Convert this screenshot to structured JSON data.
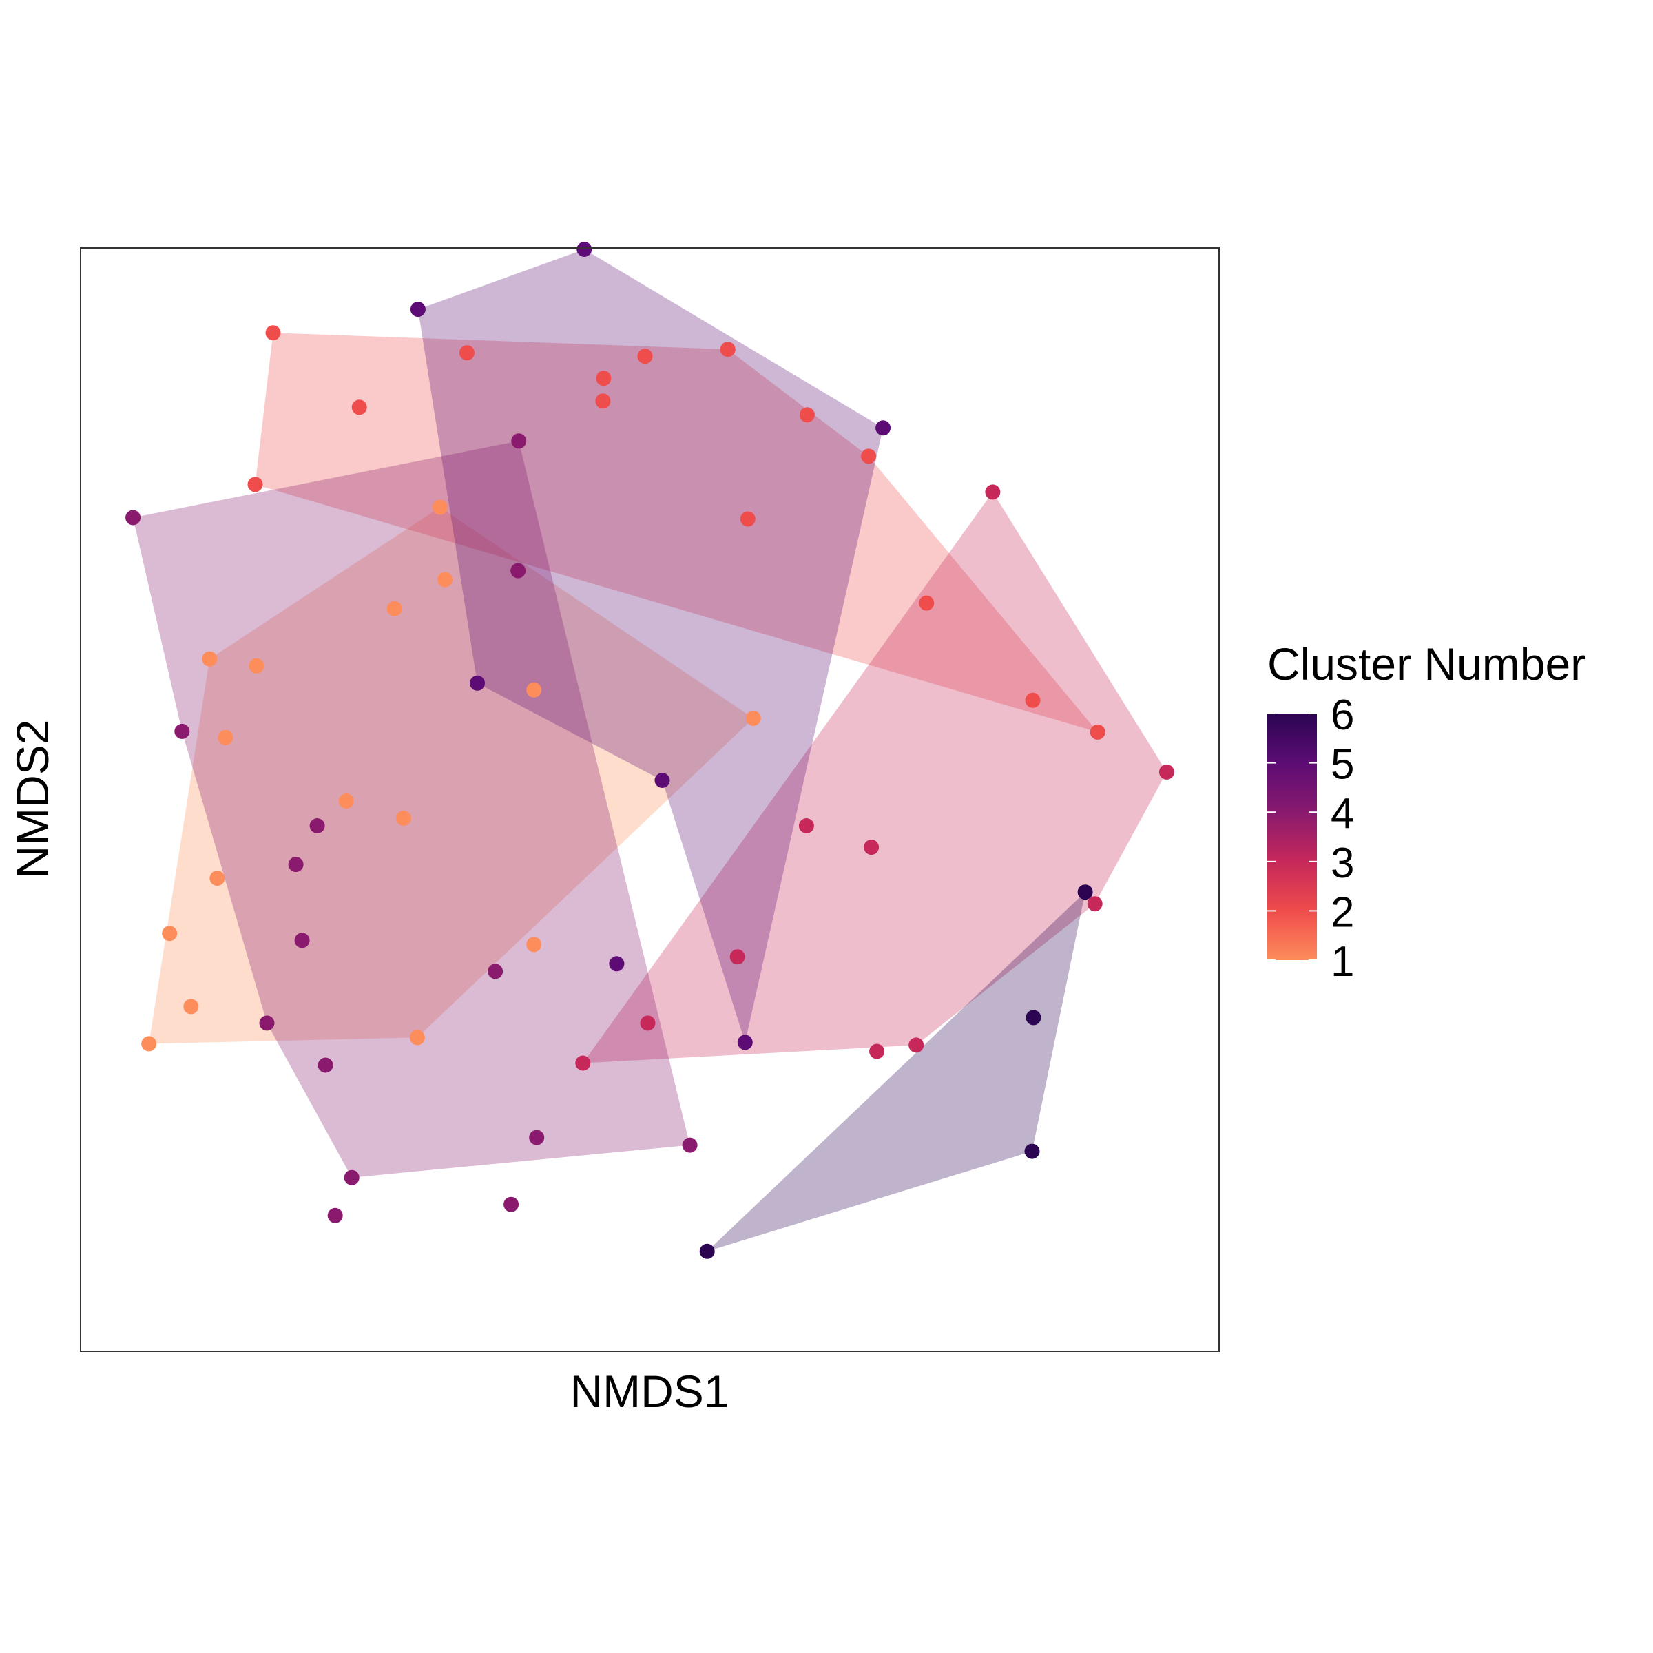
{
  "chart_data": {
    "type": "scatter",
    "title": "",
    "xlabel": "NMDS1",
    "ylabel": "NMDS2",
    "xlim": [
      0,
      1650
    ],
    "ylim": [
      -1650,
      -50
    ],
    "grid": false,
    "hulls": true,
    "legend": {
      "title": "Cluster Number",
      "position": "right",
      "type": "colorbar",
      "ticks": [
        "1",
        "2",
        "3",
        "4",
        "5",
        "6"
      ],
      "range": [
        1,
        6
      ]
    },
    "colors": {
      "1": "#FD8D5B",
      "2": "#EF4C4C",
      "3": "#C6285A",
      "4": "#891A6E",
      "5": "#5C0C74",
      "6": "#2B0552"
    },
    "series": [
      {
        "cluster": 1,
        "points": [
          [
            521,
            -426
          ],
          [
            528,
            -531
          ],
          [
            455,
            -573
          ],
          [
            187,
            -646
          ],
          [
            255,
            -656
          ],
          [
            657,
            -691
          ],
          [
            975,
            -732
          ],
          [
            210,
            -760
          ],
          [
            385,
            -852
          ],
          [
            468,
            -877
          ],
          [
            198,
            -964
          ],
          [
            657,
            -1060
          ],
          [
            129,
            -1044
          ],
          [
            160,
            -1150
          ],
          [
            99,
            -1204
          ],
          [
            488,
            -1195
          ]
        ]
      },
      {
        "cluster": 2,
        "points": [
          [
            279,
            -173
          ],
          [
            560,
            -202
          ],
          [
            758,
            -239
          ],
          [
            757,
            -272
          ],
          [
            818,
            -207
          ],
          [
            938,
            -197
          ],
          [
            1053,
            -292
          ],
          [
            1142,
            -352
          ],
          [
            404,
            -281
          ],
          [
            253,
            -393
          ],
          [
            967,
            -443
          ],
          [
            1226,
            -565
          ],
          [
            1380,
            -706
          ],
          [
            1474,
            -752
          ]
        ]
      },
      {
        "cluster": 3,
        "points": [
          [
            1322,
            -404
          ],
          [
            1574,
            -810
          ],
          [
            1470,
            -1001
          ],
          [
            1146,
            -919
          ],
          [
            1052,
            -888
          ],
          [
            952,
            -1078
          ],
          [
            822,
            -1174
          ],
          [
            728,
            -1232
          ],
          [
            1154,
            -1215
          ],
          [
            1211,
            -1206
          ]
        ]
      },
      {
        "cluster": 4,
        "points": [
          [
            635,
            -330
          ],
          [
            76,
            -441
          ],
          [
            147,
            -751
          ],
          [
            343,
            -888
          ],
          [
            312,
            -944
          ],
          [
            601,
            -1099
          ],
          [
            321,
            -1054
          ],
          [
            270,
            -1174
          ],
          [
            355,
            -1235
          ],
          [
            661,
            -1340
          ],
          [
            883,
            -1351
          ],
          [
            393,
            -1398
          ],
          [
            369,
            -1453
          ],
          [
            624,
            -1437
          ],
          [
            634,
            -518
          ]
        ]
      },
      {
        "cluster": 5,
        "points": [
          [
            730,
            -52
          ],
          [
            489,
            -139
          ],
          [
            575,
            -681
          ],
          [
            843,
            -822
          ],
          [
            777,
            -1088
          ],
          [
            963,
            -1202
          ],
          [
            1163,
            -311
          ]
        ]
      },
      {
        "cluster": 6,
        "points": [
          [
            1456,
            -984
          ],
          [
            1381,
            -1166
          ],
          [
            1379,
            -1360
          ],
          [
            908,
            -1505
          ]
        ]
      }
    ],
    "hull_polygons": [
      {
        "cluster": 1,
        "points": [
          [
            521,
            -426
          ],
          [
            975,
            -732
          ],
          [
            488,
            -1195
          ],
          [
            99,
            -1204
          ],
          [
            187,
            -646
          ]
        ]
      },
      {
        "cluster": 2,
        "points": [
          [
            279,
            -173
          ],
          [
            938,
            -197
          ],
          [
            1142,
            -352
          ],
          [
            1474,
            -752
          ],
          [
            253,
            -393
          ]
        ]
      },
      {
        "cluster": 3,
        "points": [
          [
            1322,
            -404
          ],
          [
            1574,
            -810
          ],
          [
            1470,
            -1001
          ],
          [
            1211,
            -1206
          ],
          [
            728,
            -1232
          ]
        ]
      },
      {
        "cluster": 4,
        "points": [
          [
            635,
            -330
          ],
          [
            883,
            -1351
          ],
          [
            393,
            -1398
          ],
          [
            270,
            -1174
          ],
          [
            147,
            -751
          ],
          [
            76,
            -441
          ]
        ]
      },
      {
        "cluster": 5,
        "points": [
          [
            730,
            -52
          ],
          [
            1163,
            -311
          ],
          [
            963,
            -1202
          ],
          [
            843,
            -822
          ],
          [
            575,
            -681
          ],
          [
            489,
            -139
          ]
        ]
      },
      {
        "cluster": 6,
        "points": [
          [
            1456,
            -984
          ],
          [
            1379,
            -1360
          ],
          [
            908,
            -1505
          ]
        ]
      }
    ]
  }
}
